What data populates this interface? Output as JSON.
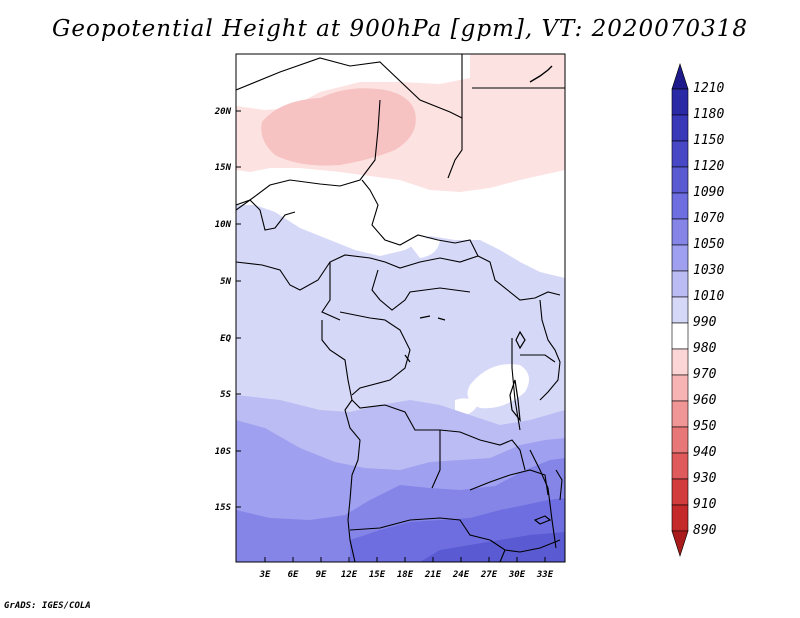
{
  "title": "Geopotential Height at 900hPa [gpm], VT: 2020070318",
  "credit": "GrADS: IGES/COLA",
  "map": {
    "lat_ticks": [
      "20N",
      "15N",
      "10N",
      "5N",
      "EQ",
      "5S",
      "10S",
      "15S"
    ],
    "lon_ticks": [
      "3E",
      "6E",
      "9E",
      "12E",
      "15E",
      "18E",
      "21E",
      "24E",
      "27E",
      "30E",
      "33E"
    ]
  },
  "colorbar": {
    "levels": [
      "1210",
      "1180",
      "1150",
      "1120",
      "1090",
      "1070",
      "1050",
      "1030",
      "1010",
      "990",
      "980",
      "970",
      "960",
      "950",
      "940",
      "930",
      "910",
      "890"
    ],
    "colors": [
      "#1e1a8c",
      "#2a2aa6",
      "#3838b8",
      "#4848c6",
      "#5a5ad2",
      "#6e6ee0",
      "#8585e8",
      "#a0a0f0",
      "#bcbcf4",
      "#d6d8f8",
      "#ffffff",
      "#fcd6d6",
      "#f7b4b4",
      "#f09696",
      "#e87878",
      "#df5a5a",
      "#d23c3c",
      "#c42a2a",
      "#aa1c1c"
    ]
  }
}
